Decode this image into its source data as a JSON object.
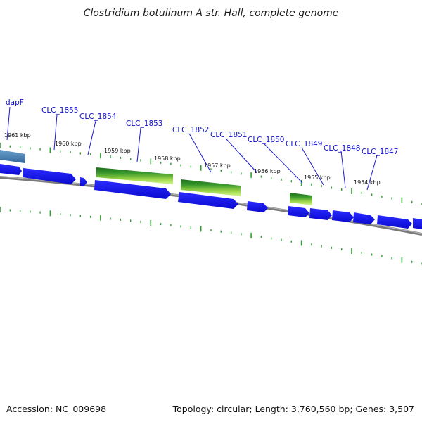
{
  "title": "Clostridium botulinum A str. Hall, complete genome",
  "footer": {
    "accession": "Accession: NC_009698",
    "summary": "Topology: circular; Length: 3,760,560 bp; Genes: 3,507"
  },
  "gene_labels": [
    {
      "id": "dapF",
      "label": "dapF"
    },
    {
      "id": "clc-1855",
      "label": "CLC_1855"
    },
    {
      "id": "clc-1854",
      "label": "CLC_1854"
    },
    {
      "id": "clc-1853",
      "label": "CLC_1853"
    },
    {
      "id": "clc-1852",
      "label": "CLC_1852"
    },
    {
      "id": "clc-1851",
      "label": "CLC_1851"
    },
    {
      "id": "clc-1850",
      "label": "CLC_1850"
    },
    {
      "id": "clc-1849",
      "label": "CLC_1849"
    },
    {
      "id": "clc-1848",
      "label": "CLC_1848"
    },
    {
      "id": "clc-1847",
      "label": "CLC_1847"
    }
  ],
  "kbp_labels": [
    "1961 kbp",
    "1960 kbp",
    "1959 kbp",
    "1958 kbp",
    "1957 kbp",
    "1956 kbp",
    "1955 kbp",
    "1954 kbp"
  ],
  "colors": {
    "gene_forward": "#1414ee",
    "highlight_gene": "#4a84b8",
    "expression_dark": "#1e7a1e",
    "expression_light": "#c4f07c",
    "ticks": "#2e9e2e",
    "backbone": "#7a7a7a",
    "label_text": "#1010c8"
  }
}
